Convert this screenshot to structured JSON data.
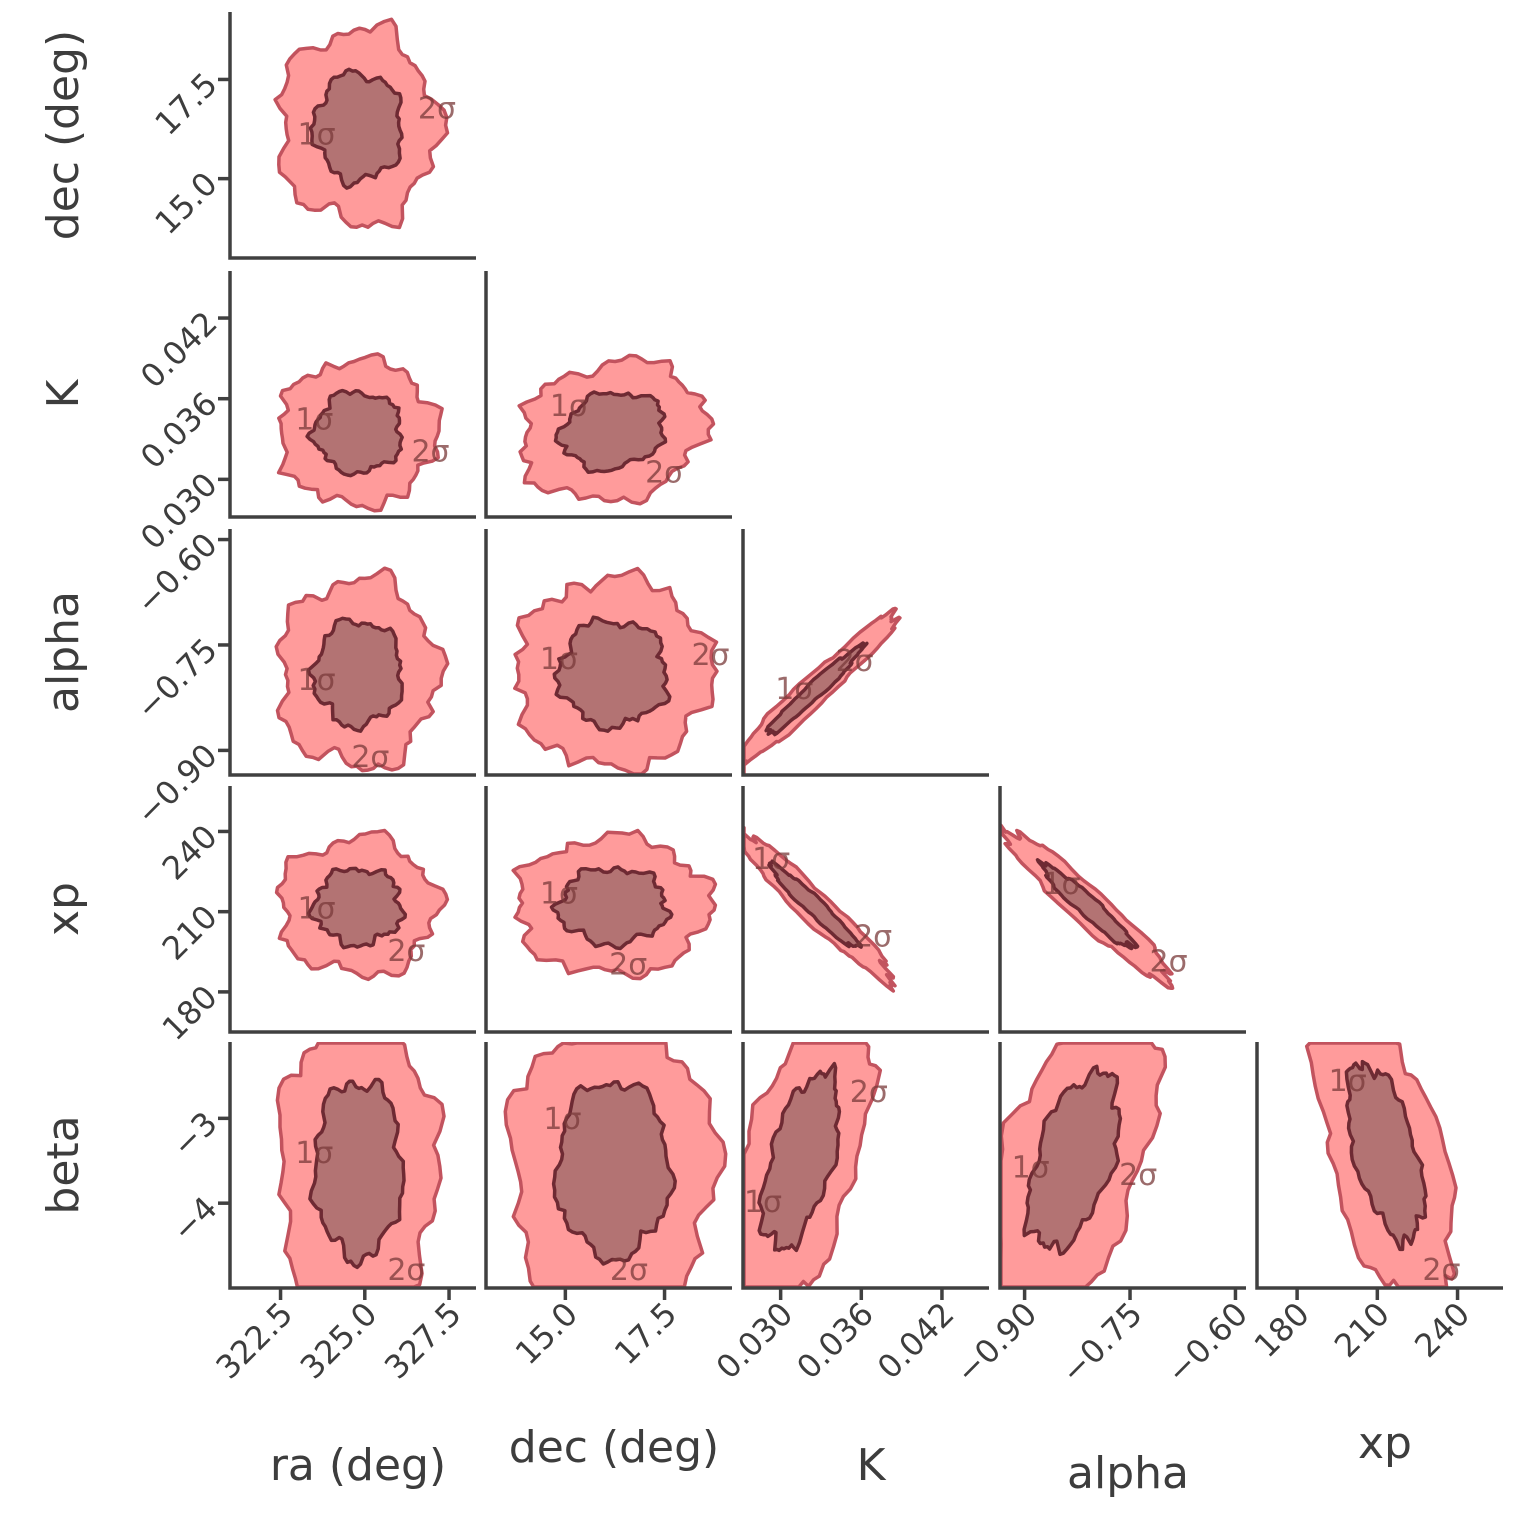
{
  "chart_data": {
    "type": "corner",
    "title": "",
    "parameters": [
      {
        "key": "ra",
        "label": "ra (deg)",
        "range": [
          321.0,
          328.3
        ],
        "ticks": [
          322.5,
          325.0,
          327.5
        ],
        "tick_labels": [
          "322.5",
          "325.0",
          "327.5"
        ]
      },
      {
        "key": "dec",
        "label": "dec (deg)",
        "range": [
          13.0,
          19.2
        ],
        "ticks": [
          15.0,
          17.5
        ],
        "tick_labels": [
          "15.0",
          "17.5"
        ]
      },
      {
        "key": "K",
        "label": "K",
        "range": [
          0.0272,
          0.0455
        ],
        "ticks": [
          0.03,
          0.036,
          0.042
        ],
        "tick_labels": [
          "0.030",
          "0.036",
          "0.042"
        ]
      },
      {
        "key": "alpha",
        "label": "alpha",
        "range": [
          -0.935,
          -0.585
        ],
        "ticks": [
          -0.9,
          -0.75,
          -0.6
        ],
        "tick_labels": [
          "−0.90",
          "−0.75",
          "−0.60"
        ]
      },
      {
        "key": "xp",
        "label": "xp",
        "range": [
          165,
          257
        ],
        "ticks": [
          180,
          210,
          240
        ],
        "tick_labels": [
          "180",
          "210",
          "240"
        ]
      },
      {
        "key": "beta",
        "label": "beta",
        "range": [
          -5.0,
          -2.1
        ],
        "ticks": [
          -3,
          -4
        ],
        "tick_labels": [
          "−3",
          "−4"
        ]
      }
    ],
    "contour_levels": [
      "1σ",
      "2σ"
    ],
    "colors": {
      "outer_fill": "#ff9b9b",
      "outer_edge": "#c2535e",
      "inner_fill": "#b37373",
      "inner_edge": "#6e2a33"
    },
    "panels": [
      {
        "x": "ra",
        "y": "dec",
        "center": [
          324.8,
          16.3
        ],
        "sx": 1.0,
        "sy": 1.05,
        "rho": 0.0
      },
      {
        "x": "ra",
        "y": "K",
        "center": [
          324.8,
          0.0335
        ],
        "sx": 1.0,
        "sy": 0.0023,
        "rho": 0.0
      },
      {
        "x": "dec",
        "y": "K",
        "center": [
          16.2,
          0.0336
        ],
        "sx": 1.0,
        "sy": 0.0022,
        "rho": 0.15
      },
      {
        "x": "ra",
        "y": "alpha",
        "center": [
          324.8,
          -0.79
        ],
        "sx": 1.0,
        "sy": 0.058,
        "rho": 0.0
      },
      {
        "x": "dec",
        "y": "alpha",
        "center": [
          16.2,
          -0.79
        ],
        "sx": 1.05,
        "sy": 0.058,
        "rho": 0.0
      },
      {
        "x": "K",
        "y": "alpha",
        "center": [
          0.0325,
          -0.815
        ],
        "sx": 0.0027,
        "sy": 0.048,
        "rho": 0.97
      },
      {
        "x": "ra",
        "y": "xp",
        "center": [
          324.8,
          212
        ],
        "sx": 1.0,
        "sy": 11,
        "rho": 0.0
      },
      {
        "x": "dec",
        "y": "xp",
        "center": [
          16.2,
          212
        ],
        "sx": 1.05,
        "sy": 11,
        "rho": 0.0
      },
      {
        "x": "K",
        "y": "xp",
        "center": [
          0.0325,
          212
        ],
        "sx": 0.0025,
        "sy": 12,
        "rho": -0.96
      },
      {
        "x": "alpha",
        "y": "xp",
        "center": [
          -0.81,
          212
        ],
        "sx": 0.05,
        "sy": 12,
        "rho": -0.95
      },
      {
        "x": "ra",
        "y": "beta",
        "center": [
          324.8,
          -3.6
        ],
        "sx": 1.0,
        "sy": 0.8,
        "rho": 0.0
      },
      {
        "x": "dec",
        "y": "beta",
        "center": [
          16.2,
          -3.6
        ],
        "sx": 1.1,
        "sy": 0.8,
        "rho": 0.0
      },
      {
        "x": "K",
        "y": "beta",
        "center": [
          0.0315,
          -3.5
        ],
        "sx": 0.0022,
        "sy": 0.8,
        "rho": 0.55
      },
      {
        "x": "alpha",
        "y": "beta",
        "center": [
          -0.83,
          -3.5
        ],
        "sx": 0.05,
        "sy": 0.8,
        "rho": 0.5
      },
      {
        "x": "xp",
        "y": "beta",
        "center": [
          213,
          -3.4
        ],
        "sx": 11,
        "sy": 0.8,
        "rho": -0.55
      }
    ]
  }
}
